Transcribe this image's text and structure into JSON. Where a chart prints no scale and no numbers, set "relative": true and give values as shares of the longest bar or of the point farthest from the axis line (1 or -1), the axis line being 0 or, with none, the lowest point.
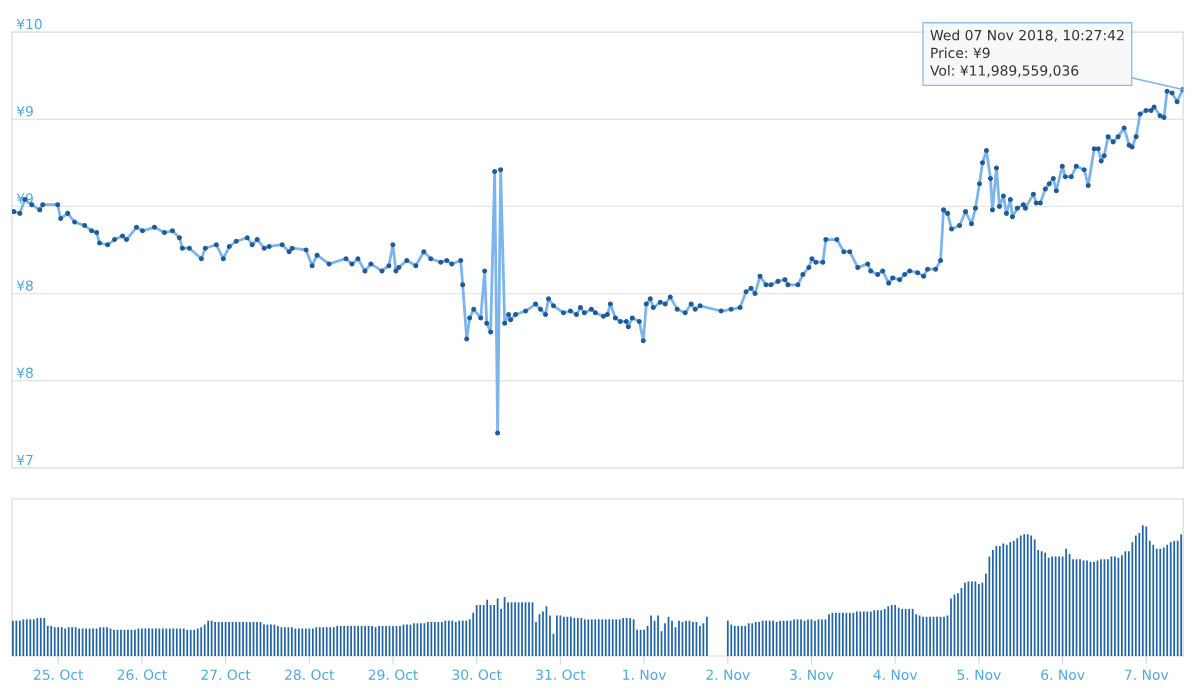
{
  "chart_data": [
    {
      "type": "line",
      "xlim": [
        "2018-10-24T10:45",
        "2018-11-07T10:35"
      ],
      "ylim": [
        7.5,
        10
      ],
      "yticks": [
        {
          "value": 7.5,
          "label": "¥7"
        },
        {
          "value": 8,
          "label": "¥8"
        },
        {
          "value": 8.5,
          "label": "¥8"
        },
        {
          "value": 9,
          "label": "¥9"
        },
        {
          "value": 9.5,
          "label": "¥9"
        },
        {
          "value": 10,
          "label": "¥10"
        }
      ],
      "tick_labels": "y",
      "grid": "y",
      "marker": "circle",
      "x": [
        "2018-10-24T11:16",
        "2018-10-24T13:00",
        "2018-10-24T14:25",
        "2018-10-24T16:25",
        "2018-10-24T18:42",
        "2018-10-24T19:34",
        "2018-10-24T23:51",
        "2018-10-25T00:43",
        "2018-10-25T02:43",
        "2018-10-25T04:43",
        "2018-10-25T07:35",
        "2018-10-25T09:35",
        "2018-10-25T11:01",
        "2018-10-25T11:52",
        "2018-10-25T14:10",
        "2018-10-25T16:10",
        "2018-10-25T18:27",
        "2018-10-25T19:35",
        "2018-10-25T22:27",
        "2018-10-26T00:10",
        "2018-10-26T03:36",
        "2018-10-26T06:28",
        "2018-10-26T08:45",
        "2018-10-26T10:45",
        "2018-10-26T11:37",
        "2018-10-26T13:37",
        "2018-10-26T17:03",
        "2018-10-26T18:11",
        "2018-10-26T21:20",
        "2018-10-26T23:20",
        "2018-10-27T01:04",
        "2018-10-27T03:04",
        "2018-10-27T06:12",
        "2018-10-27T07:38",
        "2018-10-27T09:04",
        "2018-10-27T11:04",
        "2018-10-27T12:30",
        "2018-10-27T16:13",
        "2018-10-27T18:13",
        "2018-10-27T19:05",
        "2018-10-27T23:05",
        "2018-10-28T00:48",
        "2018-10-28T02:14",
        "2018-10-28T05:40",
        "2018-10-28T10:31",
        "2018-10-28T12:14",
        "2018-10-28T13:57",
        "2018-10-28T15:57",
        "2018-10-28T17:40",
        "2018-10-28T20:49",
        "2018-10-28T22:49",
        "2018-10-28T23:58",
        "2018-10-29T00:50",
        "2018-10-29T01:41",
        "2018-10-29T03:58",
        "2018-10-29T06:33",
        "2018-10-29T08:50",
        "2018-10-29T10:50",
        "2018-10-29T13:42",
        "2018-10-29T15:25",
        "2018-10-29T16:51",
        "2018-10-29T19:25",
        "2018-10-29T19:59",
        "2018-10-29T21:08",
        "2018-10-29T21:59",
        "2018-10-29T23:08",
        "2018-10-30T01:09",
        "2018-10-30T02:17",
        "2018-10-30T02:52",
        "2018-10-30T04:00",
        "2018-10-30T05:09",
        "2018-10-30T06:00",
        "2018-10-30T06:52",
        "2018-10-30T08:01",
        "2018-10-30T09:09",
        "2018-10-30T09:43",
        "2018-10-30T11:09",
        "2018-10-30T14:01",
        "2018-10-30T16:52",
        "2018-10-30T18:18",
        "2018-10-30T19:44",
        "2018-10-30T20:35",
        "2018-10-30T22:01",
        "2018-10-31T00:53",
        "2018-10-31T02:53",
        "2018-10-31T04:36",
        "2018-10-31T05:45",
        "2018-10-31T06:53",
        "2018-10-31T08:53",
        "2018-10-31T10:02",
        "2018-10-31T12:20",
        "2018-10-31T13:28",
        "2018-10-31T14:20",
        "2018-10-31T15:46",
        "2018-10-31T17:11",
        "2018-10-31T18:54",
        "2018-10-31T19:29",
        "2018-10-31T20:37",
        "2018-10-31T22:37",
        "2018-10-31T23:46",
        "2018-11-01T00:38",
        "2018-11-01T01:46",
        "2018-11-01T02:38",
        "2018-11-01T04:38",
        "2018-11-01T06:04",
        "2018-11-01T07:30",
        "2018-11-01T09:30",
        "2018-11-01T11:47",
        "2018-11-01T13:30",
        "2018-11-01T14:39",
        "2018-11-01T16:04",
        "2018-11-01T22:05",
        "2018-11-02T00:57",
        "2018-11-02T03:31",
        "2018-11-02T05:14",
        "2018-11-02T06:40",
        "2018-11-02T07:49",
        "2018-11-02T09:14",
        "2018-11-02T10:57",
        "2018-11-02T12:23",
        "2018-11-02T14:23",
        "2018-11-02T16:23",
        "2018-11-02T17:15",
        "2018-11-02T20:06",
        "2018-11-02T21:32",
        "2018-11-02T23:15",
        "2018-11-03T00:07",
        "2018-11-03T01:15",
        "2018-11-03T03:15",
        "2018-11-03T04:07",
        "2018-11-03T07:16",
        "2018-11-03T09:16",
        "2018-11-03T10:59",
        "2018-11-03T13:16",
        "2018-11-03T16:08",
        "2018-11-03T16:59",
        "2018-11-03T18:59",
        "2018-11-03T20:25",
        "2018-11-03T22:08",
        "2018-11-03T23:17",
        "2018-11-04T01:17",
        "2018-11-04T02:43",
        "2018-11-04T04:09",
        "2018-11-04T06:26",
        "2018-11-04T08:09",
        "2018-11-04T09:17",
        "2018-11-04T11:35",
        "2018-11-04T13:01",
        "2018-11-04T13:52",
        "2018-11-04T15:01",
        "2018-11-04T16:10",
        "2018-11-04T18:27",
        "2018-11-04T20:10",
        "2018-11-04T21:53",
        "2018-11-04T23:01",
        "2018-11-05T00:10",
        "2018-11-05T01:02",
        "2018-11-05T02:10",
        "2018-11-05T03:19",
        "2018-11-05T03:53",
        "2018-11-05T05:02",
        "2018-11-05T05:54",
        "2018-11-05T07:02",
        "2018-11-05T07:54",
        "2018-11-05T09:02",
        "2018-11-05T09:37",
        "2018-11-05T11:02",
        "2018-11-05T12:45",
        "2018-11-05T13:20",
        "2018-11-05T15:37",
        "2018-11-05T16:28",
        "2018-11-05T17:37",
        "2018-11-05T19:03",
        "2018-11-05T20:11",
        "2018-11-05T21:20",
        "2018-11-05T22:12",
        "2018-11-05T23:55",
        "2018-11-06T00:46",
        "2018-11-06T02:29",
        "2018-11-06T03:55",
        "2018-11-06T06:12",
        "2018-11-06T07:21",
        "2018-11-06T09:04",
        "2018-11-06T10:13",
        "2018-11-06T11:04",
        "2018-11-06T11:55",
        "2018-11-06T13:04",
        "2018-11-06T14:30",
        "2018-11-06T15:56",
        "2018-11-06T17:39",
        "2018-11-06T19:05",
        "2018-11-06T19:56",
        "2018-11-06T21:05",
        "2018-11-06T22:13",
        "2018-11-06T23:56",
        "2018-11-07T01:22",
        "2018-11-07T02:14",
        "2018-11-07T03:57",
        "2018-11-07T05:05",
        "2018-11-07T05:57",
        "2018-11-07T07:23",
        "2018-11-07T08:50",
        "2018-11-07T10:27"
      ],
      "series": [
        {
          "color": "#7cb5ec",
          "values": [
            8.97,
            8.96,
            9.04,
            9.01,
            8.98,
            9.01,
            9.01,
            8.93,
            8.96,
            8.91,
            8.89,
            8.86,
            8.85,
            8.79,
            8.78,
            8.81,
            8.83,
            8.81,
            8.88,
            8.86,
            8.88,
            8.85,
            8.86,
            8.82,
            8.76,
            8.76,
            8.7,
            8.76,
            8.78,
            8.7,
            8.77,
            8.8,
            8.82,
            8.78,
            8.81,
            8.76,
            8.77,
            8.78,
            8.74,
            8.76,
            8.75,
            8.66,
            8.72,
            8.67,
            8.7,
            8.67,
            8.7,
            8.63,
            8.67,
            8.63,
            8.66,
            8.78,
            8.63,
            8.65,
            8.69,
            8.66,
            8.74,
            8.7,
            8.68,
            8.69,
            8.67,
            8.69,
            8.55,
            8.24,
            8.36,
            8.41,
            8.36,
            8.63,
            8.33,
            8.28,
            9.2,
            7.7,
            9.21,
            8.33,
            8.38,
            8.35,
            8.38,
            8.4,
            8.44,
            8.41,
            8.38,
            8.47,
            8.43,
            8.39,
            8.4,
            8.38,
            8.42,
            8.39,
            8.41,
            8.39,
            8.37,
            8.38,
            8.44,
            8.36,
            8.34,
            8.34,
            8.31,
            8.36,
            8.34,
            8.23,
            8.44,
            8.47,
            8.42,
            8.45,
            8.44,
            8.48,
            8.41,
            8.39,
            8.44,
            8.41,
            8.43,
            8.4,
            8.41,
            8.42,
            8.51,
            8.53,
            8.5,
            8.6,
            8.55,
            8.55,
            8.57,
            8.58,
            8.55,
            8.55,
            8.61,
            8.65,
            8.7,
            8.68,
            8.68,
            8.81,
            8.81,
            8.74,
            8.74,
            8.65,
            8.67,
            8.63,
            8.61,
            8.63,
            8.56,
            8.59,
            8.58,
            8.61,
            8.63,
            8.62,
            8.6,
            8.64,
            8.64,
            8.69,
            8.98,
            8.96,
            8.87,
            8.89,
            8.97,
            8.9,
            8.99,
            9.13,
            9.25,
            9.32,
            9.16,
            8.98,
            9.22,
            9.0,
            9.06,
            8.96,
            9.04,
            8.94,
            8.99,
            9.01,
            8.99,
            9.07,
            9.02,
            9.02,
            9.1,
            9.13,
            9.16,
            9.09,
            9.23,
            9.17,
            9.17,
            9.23,
            9.21,
            9.12,
            9.33,
            9.33,
            9.26,
            9.29,
            9.4,
            9.37,
            9.4,
            9.45,
            9.35,
            9.34,
            9.4,
            9.53,
            9.55,
            9.55,
            9.57,
            9.52,
            9.51,
            9.66,
            9.65,
            9.6,
            9.67
          ]
        }
      ],
      "annotations": [
        {
          "text": "Wed 07 Nov 2018, 10:27:42\nPrice: ¥9\nVol: ¥11,989,559,036",
          "x": "2018-11-07T10:27",
          "y": 9.67
        }
      ]
    },
    {
      "type": "bar",
      "relative": true,
      "tick_labels": "x",
      "xlim": [
        "2018-10-24T10:45",
        "2018-11-07T10:35"
      ],
      "xticks": [
        {
          "value": "2018-10-25",
          "label": "25. Oct"
        },
        {
          "value": "2018-10-26",
          "label": "26. Oct"
        },
        {
          "value": "2018-10-27",
          "label": "27. Oct"
        },
        {
          "value": "2018-10-28",
          "label": "28. Oct"
        },
        {
          "value": "2018-10-29",
          "label": "29. Oct"
        },
        {
          "value": "2018-10-30",
          "label": "30. Oct"
        },
        {
          "value": "2018-10-31",
          "label": "31. Oct"
        },
        {
          "value": "2018-11-01",
          "label": "1. Nov"
        },
        {
          "value": "2018-11-02",
          "label": "2. Nov"
        },
        {
          "value": "2018-11-03",
          "label": "3. Nov"
        },
        {
          "value": "2018-11-04",
          "label": "4. Nov"
        },
        {
          "value": "2018-11-05",
          "label": "5. Nov"
        },
        {
          "value": "2018-11-06",
          "label": "6. Nov"
        },
        {
          "value": "2018-11-07",
          "label": "7. Nov"
        }
      ],
      "x": [
        "2018-10-24T11:00",
        "2018-10-24T12:00",
        "2018-10-24T13:00",
        "2018-10-24T14:00",
        "2018-10-24T15:00",
        "2018-10-24T16:00",
        "2018-10-24T17:00",
        "2018-10-24T18:00",
        "2018-10-24T19:00",
        "2018-10-24T20:00",
        "2018-10-24T21:00",
        "2018-10-24T22:00",
        "2018-10-24T23:00",
        "2018-10-25T00:00",
        "2018-10-25T01:00",
        "2018-10-25T02:00",
        "2018-10-25T03:00",
        "2018-10-25T04:00",
        "2018-10-25T05:00",
        "2018-10-25T06:00",
        "2018-10-25T07:00",
        "2018-10-25T08:00",
        "2018-10-25T09:00",
        "2018-10-25T10:00",
        "2018-10-25T11:00",
        "2018-10-25T12:00",
        "2018-10-25T13:00",
        "2018-10-25T14:00",
        "2018-10-25T15:00",
        "2018-10-25T16:00",
        "2018-10-25T17:00",
        "2018-10-25T18:00",
        "2018-10-25T19:00",
        "2018-10-25T20:00",
        "2018-10-25T21:00",
        "2018-10-25T22:00",
        "2018-10-25T23:00",
        "2018-10-26T00:00",
        "2018-10-26T01:00",
        "2018-10-26T02:00",
        "2018-10-26T03:00",
        "2018-10-26T04:00",
        "2018-10-26T05:00",
        "2018-10-26T06:00",
        "2018-10-26T07:00",
        "2018-10-26T08:00",
        "2018-10-26T09:00",
        "2018-10-26T10:00",
        "2018-10-26T11:00",
        "2018-10-26T12:00",
        "2018-10-26T13:00",
        "2018-10-26T14:00",
        "2018-10-26T15:00",
        "2018-10-26T16:00",
        "2018-10-26T17:00",
        "2018-10-26T18:00",
        "2018-10-26T19:00",
        "2018-10-26T20:00",
        "2018-10-26T21:00",
        "2018-10-26T22:00",
        "2018-10-26T23:00",
        "2018-10-27T00:00",
        "2018-10-27T01:00",
        "2018-10-27T02:00",
        "2018-10-27T03:00",
        "2018-10-27T04:00",
        "2018-10-27T05:00",
        "2018-10-27T06:00",
        "2018-10-27T07:00",
        "2018-10-27T08:00",
        "2018-10-27T09:00",
        "2018-10-27T10:00",
        "2018-10-27T11:00",
        "2018-10-27T12:00",
        "2018-10-27T13:00",
        "2018-10-27T14:00",
        "2018-10-27T15:00",
        "2018-10-27T16:00",
        "2018-10-27T17:00",
        "2018-10-27T18:00",
        "2018-10-27T19:00",
        "2018-10-27T20:00",
        "2018-10-27T21:00",
        "2018-10-27T22:00",
        "2018-10-27T23:00",
        "2018-10-28T00:00",
        "2018-10-28T01:00",
        "2018-10-28T02:00",
        "2018-10-28T03:00",
        "2018-10-28T04:00",
        "2018-10-28T05:00",
        "2018-10-28T06:00",
        "2018-10-28T07:00",
        "2018-10-28T08:00",
        "2018-10-28T09:00",
        "2018-10-28T10:00",
        "2018-10-28T11:00",
        "2018-10-28T12:00",
        "2018-10-28T13:00",
        "2018-10-28T14:00",
        "2018-10-28T15:00",
        "2018-10-28T16:00",
        "2018-10-28T17:00",
        "2018-10-28T18:00",
        "2018-10-28T19:00",
        "2018-10-28T20:00",
        "2018-10-28T21:00",
        "2018-10-28T22:00",
        "2018-10-28T23:00",
        "2018-10-29T00:00",
        "2018-10-29T01:00",
        "2018-10-29T02:00",
        "2018-10-29T03:00",
        "2018-10-29T04:00",
        "2018-10-29T05:00",
        "2018-10-29T06:00",
        "2018-10-29T07:00",
        "2018-10-29T08:00",
        "2018-10-29T09:00",
        "2018-10-29T10:00",
        "2018-10-29T11:00",
        "2018-10-29T12:00",
        "2018-10-29T13:00",
        "2018-10-29T14:00",
        "2018-10-29T15:00",
        "2018-10-29T16:00",
        "2018-10-29T17:00",
        "2018-10-29T18:00",
        "2018-10-29T19:00",
        "2018-10-29T20:00",
        "2018-10-29T21:00",
        "2018-10-29T22:00",
        "2018-10-29T23:00",
        "2018-10-30T00:00",
        "2018-10-30T01:00",
        "2018-10-30T02:00",
        "2018-10-30T03:00",
        "2018-10-30T04:00",
        "2018-10-30T05:00",
        "2018-10-30T06:00",
        "2018-10-30T07:00",
        "2018-10-30T08:00",
        "2018-10-30T09:00",
        "2018-10-30T10:00",
        "2018-10-30T11:00",
        "2018-10-30T12:00",
        "2018-10-30T13:00",
        "2018-10-30T14:00",
        "2018-10-30T15:00",
        "2018-10-30T16:00",
        "2018-10-30T17:00",
        "2018-10-30T18:00",
        "2018-10-30T19:00",
        "2018-10-30T20:00",
        "2018-10-30T21:00",
        "2018-10-30T22:00",
        "2018-10-30T23:00",
        "2018-10-31T00:00",
        "2018-10-31T01:00",
        "2018-10-31T02:00",
        "2018-10-31T03:00",
        "2018-10-31T04:00",
        "2018-10-31T05:00",
        "2018-10-31T06:00",
        "2018-10-31T07:00",
        "2018-10-31T08:00",
        "2018-10-31T09:00",
        "2018-10-31T10:00",
        "2018-10-31T11:00",
        "2018-10-31T12:00",
        "2018-10-31T13:00",
        "2018-10-31T14:00",
        "2018-10-31T15:00",
        "2018-10-31T16:00",
        "2018-10-31T17:00",
        "2018-10-31T18:00",
        "2018-10-31T19:00",
        "2018-10-31T20:00",
        "2018-10-31T21:00",
        "2018-10-31T22:00",
        "2018-10-31T23:00",
        "2018-11-01T00:00",
        "2018-11-01T01:00",
        "2018-11-01T02:00",
        "2018-11-01T03:00",
        "2018-11-01T04:00",
        "2018-11-01T05:00",
        "2018-11-01T06:00",
        "2018-11-01T07:00",
        "2018-11-01T08:00",
        "2018-11-01T09:00",
        "2018-11-01T10:00",
        "2018-11-01T11:00",
        "2018-11-01T12:00",
        "2018-11-01T13:00",
        "2018-11-01T14:00",
        "2018-11-01T15:00",
        "2018-11-01T16:00",
        "2018-11-01T17:00",
        "2018-11-01T18:00",
        "2018-11-01T19:00",
        "2018-11-01T20:00",
        "2018-11-01T21:00",
        "2018-11-01T22:00",
        "2018-11-01T23:00",
        "2018-11-02T00:00",
        "2018-11-02T01:00",
        "2018-11-02T02:00",
        "2018-11-02T03:00",
        "2018-11-02T04:00",
        "2018-11-02T05:00",
        "2018-11-02T06:00",
        "2018-11-02T07:00",
        "2018-11-02T08:00",
        "2018-11-02T09:00",
        "2018-11-02T10:00",
        "2018-11-02T11:00",
        "2018-11-02T12:00",
        "2018-11-02T13:00",
        "2018-11-02T14:00",
        "2018-11-02T15:00",
        "2018-11-02T16:00",
        "2018-11-02T17:00",
        "2018-11-02T18:00",
        "2018-11-02T19:00",
        "2018-11-02T20:00",
        "2018-11-02T21:00",
        "2018-11-02T22:00",
        "2018-11-02T23:00",
        "2018-11-03T00:00",
        "2018-11-03T01:00",
        "2018-11-03T02:00",
        "2018-11-03T03:00",
        "2018-11-03T04:00",
        "2018-11-03T05:00",
        "2018-11-03T06:00",
        "2018-11-03T07:00",
        "2018-11-03T08:00",
        "2018-11-03T09:00",
        "2018-11-03T10:00",
        "2018-11-03T11:00",
        "2018-11-03T12:00",
        "2018-11-03T13:00",
        "2018-11-03T14:00",
        "2018-11-03T15:00",
        "2018-11-03T16:00",
        "2018-11-03T17:00",
        "2018-11-03T18:00",
        "2018-11-03T19:00",
        "2018-11-03T20:00",
        "2018-11-03T21:00",
        "2018-11-03T22:00",
        "2018-11-03T23:00",
        "2018-11-04T00:00",
        "2018-11-04T01:00",
        "2018-11-04T02:00",
        "2018-11-04T03:00",
        "2018-11-04T04:00",
        "2018-11-04T05:00",
        "2018-11-04T06:00",
        "2018-11-04T07:00",
        "2018-11-04T08:00",
        "2018-11-04T09:00",
        "2018-11-04T10:00",
        "2018-11-04T11:00",
        "2018-11-04T12:00",
        "2018-11-04T13:00",
        "2018-11-04T14:00",
        "2018-11-04T15:00",
        "2018-11-04T16:00",
        "2018-11-04T17:00",
        "2018-11-04T18:00",
        "2018-11-04T19:00",
        "2018-11-04T20:00",
        "2018-11-04T21:00",
        "2018-11-04T22:00",
        "2018-11-04T23:00",
        "2018-11-05T00:00",
        "2018-11-05T01:00",
        "2018-11-05T02:00",
        "2018-11-05T03:00",
        "2018-11-05T04:00",
        "2018-11-05T05:00",
        "2018-11-05T06:00",
        "2018-11-05T07:00",
        "2018-11-05T08:00",
        "2018-11-05T09:00",
        "2018-11-05T10:00",
        "2018-11-05T11:00",
        "2018-11-05T12:00",
        "2018-11-05T13:00",
        "2018-11-05T14:00",
        "2018-11-05T15:00",
        "2018-11-05T16:00",
        "2018-11-05T17:00",
        "2018-11-05T18:00",
        "2018-11-05T19:00",
        "2018-11-05T20:00",
        "2018-11-05T21:00",
        "2018-11-05T22:00",
        "2018-11-05T23:00",
        "2018-11-06T00:00",
        "2018-11-06T01:00",
        "2018-11-06T02:00",
        "2018-11-06T03:00",
        "2018-11-06T04:00",
        "2018-11-06T05:00",
        "2018-11-06T06:00",
        "2018-11-06T07:00",
        "2018-11-06T08:00",
        "2018-11-06T09:00",
        "2018-11-06T10:00",
        "2018-11-06T11:00",
        "2018-11-06T12:00",
        "2018-11-06T13:00",
        "2018-11-06T14:00",
        "2018-11-06T15:00",
        "2018-11-06T16:00",
        "2018-11-06T17:00",
        "2018-11-06T18:00",
        "2018-11-06T19:00",
        "2018-11-06T20:00",
        "2018-11-06T21:00",
        "2018-11-06T22:00",
        "2018-11-06T23:00",
        "2018-11-07T00:00",
        "2018-11-07T01:00",
        "2018-11-07T02:00",
        "2018-11-07T03:00",
        "2018-11-07T04:00",
        "2018-11-07T05:00",
        "2018-11-07T06:00",
        "2018-11-07T07:00",
        "2018-11-07T08:00",
        "2018-11-07T09:00",
        "2018-11-07T10:00"
      ],
      "series": [
        {
          "color": "#1f64a8",
          "values": [
            0.27,
            0.27,
            0.27,
            0.28,
            0.28,
            0.28,
            0.28,
            0.29,
            0.29,
            0.29,
            0.23,
            0.23,
            0.22,
            0.22,
            0.22,
            0.21,
            0.22,
            0.22,
            0.22,
            0.21,
            0.21,
            0.21,
            0.21,
            0.21,
            0.21,
            0.22,
            0.22,
            0.22,
            0.21,
            0.2,
            0.2,
            0.2,
            0.2,
            0.2,
            0.2,
            0.2,
            0.21,
            0.21,
            0.21,
            0.21,
            0.21,
            0.21,
            0.21,
            0.21,
            0.21,
            0.21,
            0.21,
            0.21,
            0.21,
            0.21,
            0.2,
            0.2,
            0.2,
            0.21,
            0.22,
            0.24,
            0.27,
            0.27,
            0.26,
            0.26,
            0.26,
            0.26,
            0.26,
            0.26,
            0.26,
            0.26,
            0.26,
            0.26,
            0.26,
            0.26,
            0.26,
            0.26,
            0.24,
            0.24,
            0.24,
            0.24,
            0.23,
            0.22,
            0.22,
            0.22,
            0.22,
            0.21,
            0.21,
            0.21,
            0.21,
            0.21,
            0.21,
            0.22,
            0.22,
            0.22,
            0.22,
            0.22,
            0.22,
            0.23,
            0.23,
            0.23,
            0.23,
            0.23,
            0.23,
            0.23,
            0.23,
            0.23,
            0.23,
            0.23,
            0.22,
            0.23,
            0.23,
            0.23,
            0.23,
            0.23,
            0.23,
            0.23,
            0.24,
            0.24,
            0.24,
            0.25,
            0.25,
            0.25,
            0.25,
            0.26,
            0.26,
            0.26,
            0.26,
            0.26,
            0.27,
            0.27,
            0.27,
            0.26,
            0.27,
            0.27,
            0.27,
            0.28,
            0.33,
            0.39,
            0.39,
            0.39,
            0.43,
            0.39,
            0.39,
            0.44,
            0.36,
            0.45,
            0.41,
            0.41,
            0.41,
            0.41,
            0.41,
            0.41,
            0.41,
            0.41,
            0.26,
            0.32,
            0.34,
            0.38,
            0.31,
            0.17,
            0.31,
            0.31,
            0.3,
            0.3,
            0.3,
            0.29,
            0.29,
            0.29,
            0.28,
            0.28,
            0.28,
            0.28,
            0.28,
            0.28,
            0.28,
            0.28,
            0.28,
            0.28,
            0.28,
            0.29,
            0.29,
            0.29,
            0.28,
            0.2,
            0.2,
            0.2,
            0.23,
            0.31,
            0.27,
            0.31,
            0.19,
            0.25,
            0.3,
            0.27,
            0.22,
            0.27,
            0.26,
            0.27,
            0.27,
            0.26,
            0.26,
            0.23,
            0.25,
            0.3,
            null,
            null,
            null,
            null,
            null,
            0.27,
            0.24,
            0.23,
            0.23,
            0.23,
            0.23,
            0.25,
            0.25,
            0.26,
            0.26,
            0.27,
            0.27,
            0.27,
            0.27,
            0.26,
            0.27,
            0.27,
            0.27,
            0.27,
            0.28,
            0.28,
            0.28,
            0.27,
            0.28,
            0.28,
            0.27,
            0.28,
            0.28,
            0.28,
            0.32,
            0.33,
            0.33,
            0.33,
            0.33,
            0.33,
            0.33,
            0.33,
            0.34,
            0.34,
            0.34,
            0.34,
            0.34,
            0.35,
            0.35,
            0.35,
            0.36,
            0.38,
            0.39,
            0.39,
            0.37,
            0.36,
            0.36,
            0.36,
            0.36,
            0.32,
            0.31,
            0.3,
            0.3,
            0.3,
            0.3,
            0.3,
            0.3,
            0.3,
            0.31,
            0.44,
            0.47,
            0.48,
            0.52,
            0.56,
            0.57,
            0.57,
            0.57,
            0.55,
            0.56,
            0.63,
            0.76,
            0.81,
            0.84,
            0.84,
            0.86,
            0.85,
            0.87,
            0.88,
            0.9,
            0.92,
            0.93,
            0.93,
            0.92,
            0.89,
            0.81,
            0.8,
            0.79,
            0.75,
            0.76,
            0.76,
            0.76,
            0.76,
            0.82,
            0.78,
            0.74,
            0.74,
            0.74,
            0.73,
            0.73,
            0.72,
            0.72,
            0.73,
            0.74,
            0.74,
            0.74,
            0.76,
            0.76,
            0.75,
            0.77,
            0.8,
            0.8,
            0.87,
            0.92,
            0.94,
            1.0,
            0.99,
            0.88,
            0.85,
            0.82,
            0.82,
            0.83,
            0.85,
            0.87,
            0.88,
            0.88,
            0.93
          ]
        }
      ]
    }
  ]
}
